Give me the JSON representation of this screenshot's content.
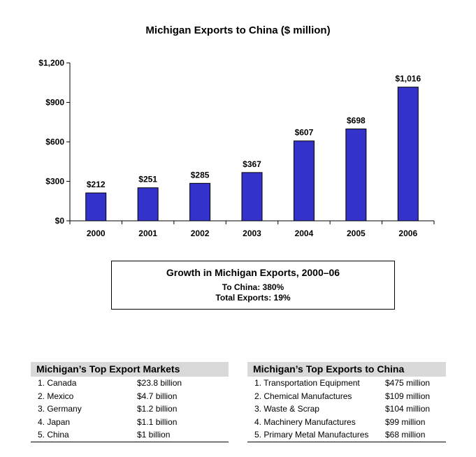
{
  "chart_data": {
    "type": "bar",
    "title": "Michigan Exports to China ($ million)",
    "categories": [
      "2000",
      "2001",
      "2002",
      "2003",
      "2004",
      "2005",
      "2006"
    ],
    "values": [
      212,
      251,
      285,
      367,
      607,
      698,
      1016
    ],
    "value_labels": [
      "$212",
      "$251",
      "$285",
      "$367",
      "$607",
      "$698",
      "$1,016"
    ],
    "yticks": [
      0,
      300,
      600,
      900,
      1200
    ],
    "ytick_labels": [
      "$0",
      "$300",
      "$600",
      "$900",
      "$1,200"
    ],
    "ylim": [
      0,
      1200
    ],
    "xlabel": "",
    "ylabel": "",
    "bar_color": "#3333cc",
    "grid": false
  },
  "growth": {
    "title": "Growth in Michigan Exports, 2000–06",
    "to_china": "To China: 380%",
    "total": "Total Exports: 19%"
  },
  "markets": {
    "title": "Michigan’s Top Export Markets",
    "rows": [
      {
        "label": "1. Canada",
        "value": "$23.8 billion"
      },
      {
        "label": "2. Mexico",
        "value": "$4.7 billion"
      },
      {
        "label": "3. Germany",
        "value": "$1.2 billion"
      },
      {
        "label": "4. Japan",
        "value": "$1.1 billion"
      },
      {
        "label": "5. China",
        "value": "$1 billion"
      }
    ]
  },
  "exports_china": {
    "title": "Michigan’s Top Exports to China",
    "rows": [
      {
        "label": "1. Transportation Equipment",
        "value": "$475 million"
      },
      {
        "label": "2. Chemical Manufactures",
        "value": "$109 million"
      },
      {
        "label": "3. Waste & Scrap",
        "value": "$104 million"
      },
      {
        "label": "4. Machinery Manufactures",
        "value": "$99 million"
      },
      {
        "label": "5. Primary Metal Manufactures",
        "value": "$68 million"
      }
    ]
  }
}
